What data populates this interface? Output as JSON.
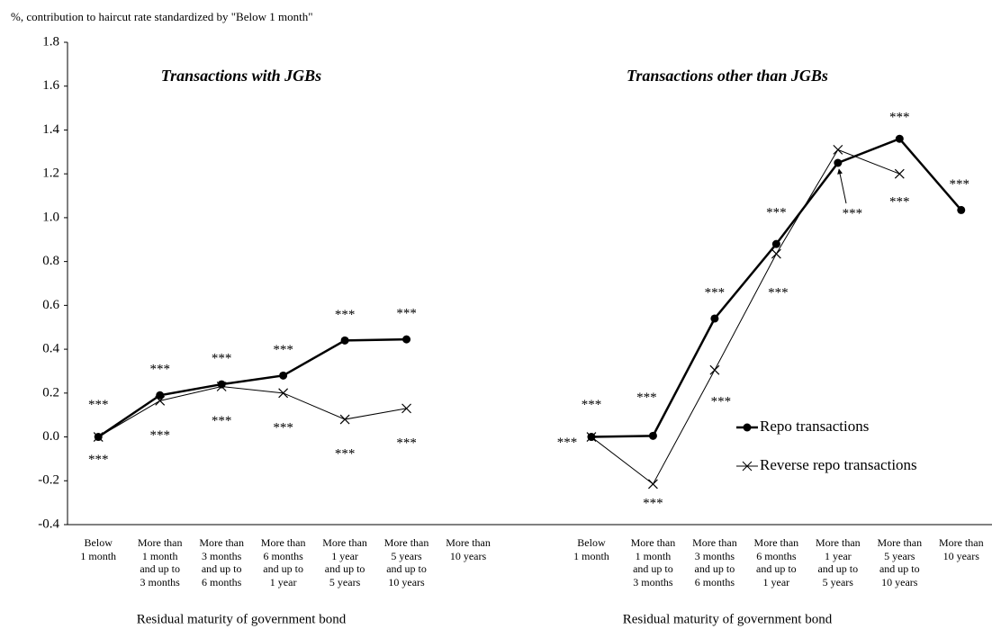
{
  "chart_data": {
    "type": "line",
    "subtitle": "%, contribution to haircut rate standardized by \"Below 1 month\"",
    "panel_titles": [
      "Transactions with JGBs",
      "Transactions other than JGBs"
    ],
    "xlabels": [
      "Residual maturity of government bond",
      "Residual maturity of government bond"
    ],
    "categories": [
      "Below\n1 month",
      "More than\n1 month\nand up to\n3 months",
      "More than\n3 months\nand up to\n6 months",
      "More than\n6 months\nand up to\n1 year",
      "More than\n1 year\nand up to\n5 years",
      "More than\n5 years\nand up to\n10 years",
      "More than\n10 years",
      null,
      "Below\n1 month",
      "More than\n1 month\nand up to\n3 months",
      "More than\n3 months\nand up to\n6 months",
      "More than\n6 months\nand up to\n1 year",
      "More than\n1 year\nand up to\n5 years",
      "More than\n5 years\nand up to\n10 years",
      "More than\n10 years"
    ],
    "series": [
      {
        "name": "Repo transactions",
        "color": "#000000",
        "marker": "circle",
        "values": [
          0,
          0.19,
          0.24,
          0.28,
          0.44,
          0.445,
          null,
          null,
          0,
          0.005,
          0.54,
          0.88,
          1.25,
          1.36,
          1.035
        ],
        "significance": [
          "***",
          "***",
          "***",
          "***",
          "***",
          "***",
          null,
          null,
          "***",
          "***",
          "***",
          "***",
          "***",
          "***",
          "***"
        ]
      },
      {
        "name": "Reverse repo transactions",
        "color": "#000000",
        "marker": "x",
        "values": [
          0,
          0.165,
          0.23,
          0.2,
          0.08,
          0.13,
          null,
          null,
          0,
          -0.215,
          0.305,
          0.835,
          1.31,
          1.2,
          null
        ],
        "significance": [
          "***",
          "***",
          "***",
          "***",
          "***",
          "***",
          null,
          null,
          "***",
          "***",
          "***",
          "***",
          null,
          "***",
          null
        ]
      }
    ],
    "ylim": [
      -0.4,
      1.8
    ],
    "yticks": [
      {
        "value": -0.4,
        "label": "-0.4"
      },
      {
        "value": -0.2,
        "label": "-0.2"
      },
      {
        "value": 0,
        "label": "0.0"
      },
      {
        "value": 0.2,
        "label": "0.2"
      },
      {
        "value": 0.4,
        "label": "0.4"
      },
      {
        "value": 0.6,
        "label": "0.6"
      },
      {
        "value": 0.8,
        "label": "0.8"
      },
      {
        "value": 1,
        "label": "1.0"
      },
      {
        "value": 1.2,
        "label": "1.2"
      },
      {
        "value": 1.4,
        "label": "1.4"
      },
      {
        "value": 1.6,
        "label": "1.6"
      },
      {
        "value": 1.8,
        "label": "1.8"
      }
    ],
    "grid": false,
    "legend": "lower right"
  }
}
